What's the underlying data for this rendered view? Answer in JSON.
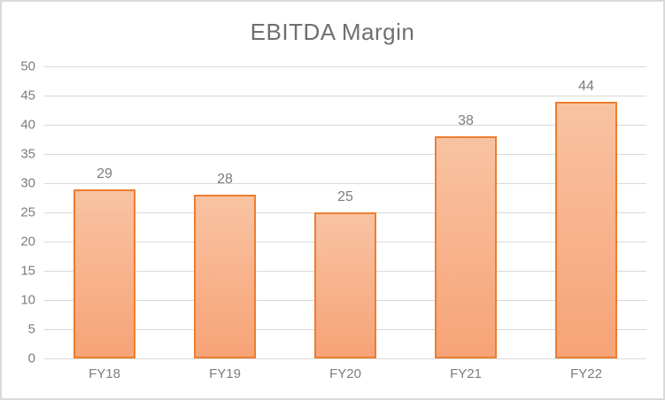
{
  "chart_data": {
    "type": "bar",
    "title": "EBITDA Margin",
    "categories": [
      "FY18",
      "FY19",
      "FY20",
      "FY21",
      "FY22"
    ],
    "values": [
      29,
      28,
      25,
      38,
      44
    ],
    "data_labels": [
      "29",
      "28",
      "25",
      "38",
      "44"
    ],
    "xlabel": "",
    "ylabel": "",
    "ylim": [
      0,
      50
    ],
    "yticks": [
      0,
      5,
      10,
      15,
      20,
      25,
      30,
      35,
      40,
      45,
      50
    ],
    "grid": true,
    "legend": false,
    "colors": {
      "bar_border": "#ED7D31",
      "bar_fill_top": "#F8C3A2",
      "bar_fill_bottom": "#F7A377",
      "gridline": "#D9D9D9",
      "frame_border": "#D9D9D9",
      "axis_text": "#7D7D7D",
      "title_text": "#6F6F6F",
      "background": "#FFFFFF"
    }
  }
}
